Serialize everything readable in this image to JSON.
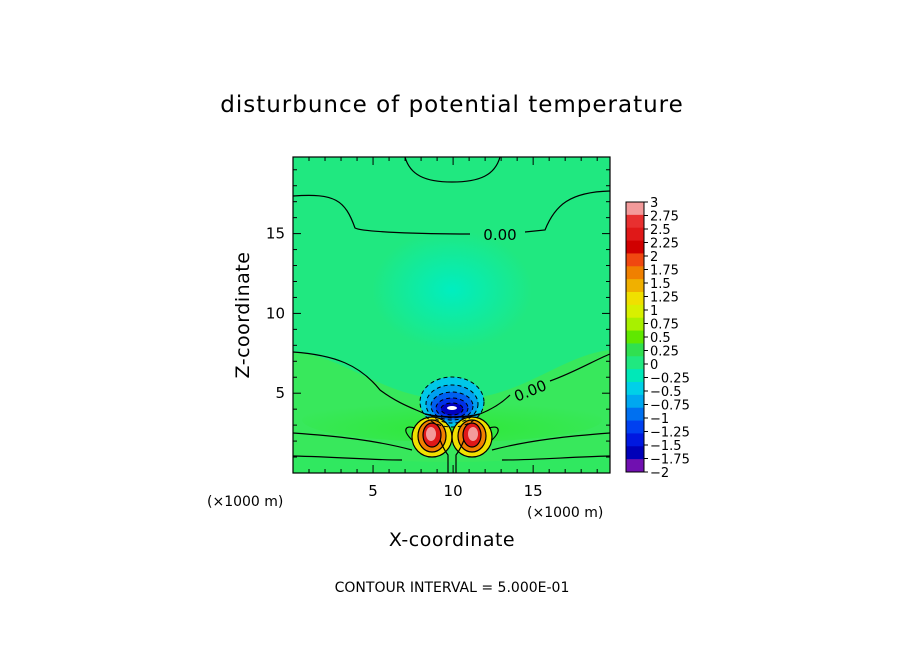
{
  "chart_data": {
    "type": "heatmap",
    "title": "disturbunce of potential temperature",
    "xlabel": "X-coordinate",
    "ylabel": "Z-coordinate",
    "x_unit": "(×1000 m)",
    "x_unit_below": "(×1000 m)",
    "xlim": [
      0,
      19.8
    ],
    "ylim": [
      0,
      19.8
    ],
    "x_ticks": [
      "5",
      "10",
      "15"
    ],
    "y_ticks": [
      "5",
      "10",
      "15"
    ],
    "x_tick_values": [
      5,
      10,
      15
    ],
    "y_tick_values": [
      5,
      10,
      15
    ],
    "contour_labels": [
      "0.00",
      "0.00"
    ],
    "footer": "CONTOUR INTERVAL = 5.000E-01",
    "colorbar": {
      "labels": [
        "3",
        "2.75",
        "2.5",
        "2.25",
        "2",
        "1.75",
        "1.5",
        "1.25",
        "1",
        "0.75",
        "0.5",
        "0.25",
        "0",
        "−0.25",
        "−0.5",
        "−0.75",
        "−1",
        "−1.25",
        "−1.5",
        "−1.75",
        "−2"
      ],
      "values": [
        3,
        2.75,
        2.5,
        2.25,
        2,
        1.75,
        1.5,
        1.25,
        1,
        0.75,
        0.5,
        0.25,
        0,
        -0.25,
        -0.5,
        -0.75,
        -1,
        -1.25,
        -1.5,
        -1.75,
        -2
      ],
      "colors": [
        "#f39a9a",
        "#e83030",
        "#e01818",
        "#d00000",
        "#f04810",
        "#f08000",
        "#f0b000",
        "#f0e000",
        "#d8f000",
        "#a8f000",
        "#60e800",
        "#30e050",
        "#20e880",
        "#00e8b8",
        "#00d0e8",
        "#00a8f0",
        "#0070f0",
        "#0040f0",
        "#0018e0",
        "#0000b8",
        "#7010b0"
      ]
    }
  }
}
